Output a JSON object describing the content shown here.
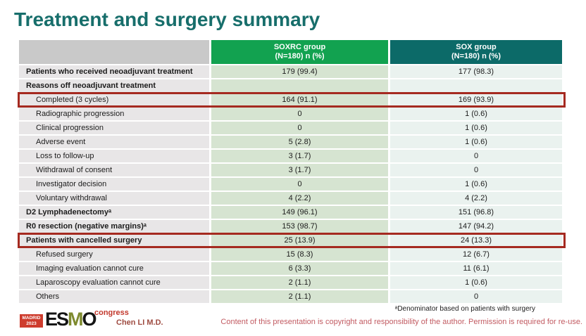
{
  "slide": {
    "title": "Treatment and surgery summary"
  },
  "colors": {
    "title_teal": "#176E6B",
    "header_green": "#12A250",
    "header_teal": "#0C6A68",
    "header_gray": "#C9C9C9",
    "cell_gray": "#E8E6E7",
    "cell_green": "#D6E4D1",
    "cell_teal": "#EAF2EF",
    "highlight_red": "#A52A20",
    "copyright_red": "#C25B62",
    "presenter_red": "#9E4B41",
    "logo_red": "#CE3C2D",
    "logo_olive": "#7E8A2E"
  },
  "table": {
    "header": {
      "col1": "",
      "col2_line1": "SOXRC group",
      "col2_line2": "(N=180)  n (%)",
      "col3_line1": "SOX group",
      "col3_line2": "(N=180)  n (%)"
    },
    "rows": [
      {
        "label": "Patients who received neoadjuvant treatment",
        "soxrc": "179 (99.4)",
        "sox": "177 (98.3)",
        "bold": true,
        "indent": false,
        "highlight": false
      },
      {
        "label": "Reasons off neoadjuvant treatment",
        "soxrc": "",
        "sox": "",
        "bold": true,
        "indent": false,
        "highlight": false
      },
      {
        "label": "Completed (3 cycles)",
        "soxrc": "164 (91.1)",
        "sox": "169 (93.9)",
        "bold": false,
        "indent": true,
        "highlight": true
      },
      {
        "label": "Radiographic progression",
        "soxrc": "0",
        "sox": "1 (0.6)",
        "bold": false,
        "indent": true,
        "highlight": false
      },
      {
        "label": "Clinical progression",
        "soxrc": "0",
        "sox": "1 (0.6)",
        "bold": false,
        "indent": true,
        "highlight": false
      },
      {
        "label": "Adverse event",
        "soxrc": "5 (2.8)",
        "sox": "1 (0.6)",
        "bold": false,
        "indent": true,
        "highlight": false
      },
      {
        "label": "Loss to follow-up",
        "soxrc": "3 (1.7)",
        "sox": "0",
        "bold": false,
        "indent": true,
        "highlight": false
      },
      {
        "label": "Withdrawal of consent",
        "soxrc": "3 (1.7)",
        "sox": "0",
        "bold": false,
        "indent": true,
        "highlight": false
      },
      {
        "label": "Investigator decision",
        "soxrc": "0",
        "sox": "1 (0.6)",
        "bold": false,
        "indent": true,
        "highlight": false
      },
      {
        "label": "Voluntary withdrawal",
        "soxrc": "4 (2.2)",
        "sox": "4 (2.2)",
        "bold": false,
        "indent": true,
        "highlight": false
      },
      {
        "label": "D2 Lymphadenectomyᵃ",
        "soxrc": "149 (96.1)",
        "sox": "151 (96.8)",
        "bold": true,
        "indent": false,
        "highlight": false
      },
      {
        "label": "R0 resection (negative margins)ᵃ",
        "soxrc": "153 (98.7)",
        "sox": "147 (94.2)",
        "bold": true,
        "indent": false,
        "highlight": false
      },
      {
        "label": "Patients with cancelled surgery",
        "soxrc": "25 (13.9)",
        "sox": "24 (13.3)",
        "bold": true,
        "indent": false,
        "highlight": true
      },
      {
        "label": "Refused surgery",
        "soxrc": "15 (8.3)",
        "sox": "12 (6.7)",
        "bold": false,
        "indent": true,
        "highlight": false
      },
      {
        "label": "Imaging evaluation cannot cure",
        "soxrc": "6 (3.3)",
        "sox": "11 (6.1)",
        "bold": false,
        "indent": true,
        "highlight": false
      },
      {
        "label": "Laparoscopy evaluation cannot cure",
        "soxrc": "2 (1.1)",
        "sox": "1 (0.6)",
        "bold": false,
        "indent": true,
        "highlight": false
      },
      {
        "label": "Others",
        "soxrc": "2 (1.1)",
        "sox": "0",
        "bold": false,
        "indent": true,
        "highlight": false
      }
    ]
  },
  "footer": {
    "logo": {
      "city": "MADRID",
      "year": "2023",
      "es": "ES",
      "m": "M",
      "o": "O",
      "congress": "congress"
    },
    "presenter": "Chen LI M.D.",
    "footnote": "ᵃDenominator based on patients with surgery",
    "copyright": "Content of this presentation is copyright and responsibility of the author. Permission is required for re-use."
  }
}
